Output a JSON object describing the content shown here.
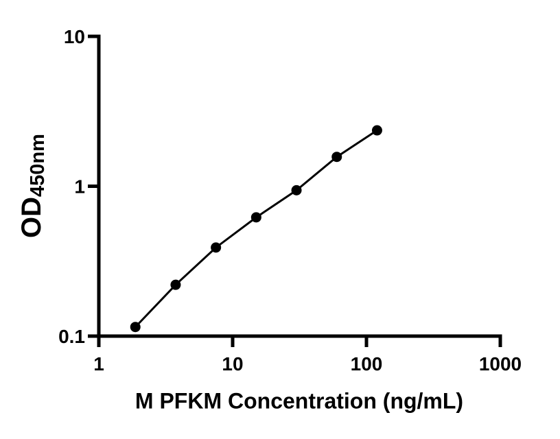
{
  "figure": {
    "background_color": "#ffffff",
    "ink_color": "#000000"
  },
  "chart_data": {
    "type": "scatter",
    "subtype": "standard-curve-with-connecting-line",
    "title": "",
    "xlabel": "M PFKM Concentration (ng/mL)",
    "ylabel": "OD450nm",
    "ylabel_main": "OD",
    "ylabel_sub": "450nm",
    "x_scale": "log10",
    "y_scale": "log10",
    "xlim": [
      1,
      1000
    ],
    "ylim": [
      0.1,
      10
    ],
    "x_ticks": [
      {
        "value": 1,
        "label": "1"
      },
      {
        "value": 10,
        "label": "10"
      },
      {
        "value": 100,
        "label": "100"
      },
      {
        "value": 1000,
        "label": "1000"
      }
    ],
    "y_ticks": [
      {
        "value": 0.1,
        "label": "0.1"
      },
      {
        "value": 1,
        "label": "1"
      },
      {
        "value": 10,
        "label": "10"
      }
    ],
    "grid": false,
    "legend": false,
    "series": [
      {
        "name": "standard curve",
        "marker": "filled-circle",
        "color": "#000000",
        "line_color": "#000000",
        "points": [
          {
            "x": 1.875,
            "y": 0.115
          },
          {
            "x": 3.75,
            "y": 0.22
          },
          {
            "x": 7.5,
            "y": 0.39
          },
          {
            "x": 15,
            "y": 0.62
          },
          {
            "x": 30,
            "y": 0.94
          },
          {
            "x": 60,
            "y": 1.57
          },
          {
            "x": 120,
            "y": 2.36
          }
        ]
      }
    ],
    "style": {
      "axis_stroke_width": 5,
      "tick_stroke_width": 5,
      "tick_length": 16,
      "curve_stroke_width": 3,
      "marker_radius": 7.5,
      "tick_font_size": 28
    }
  }
}
